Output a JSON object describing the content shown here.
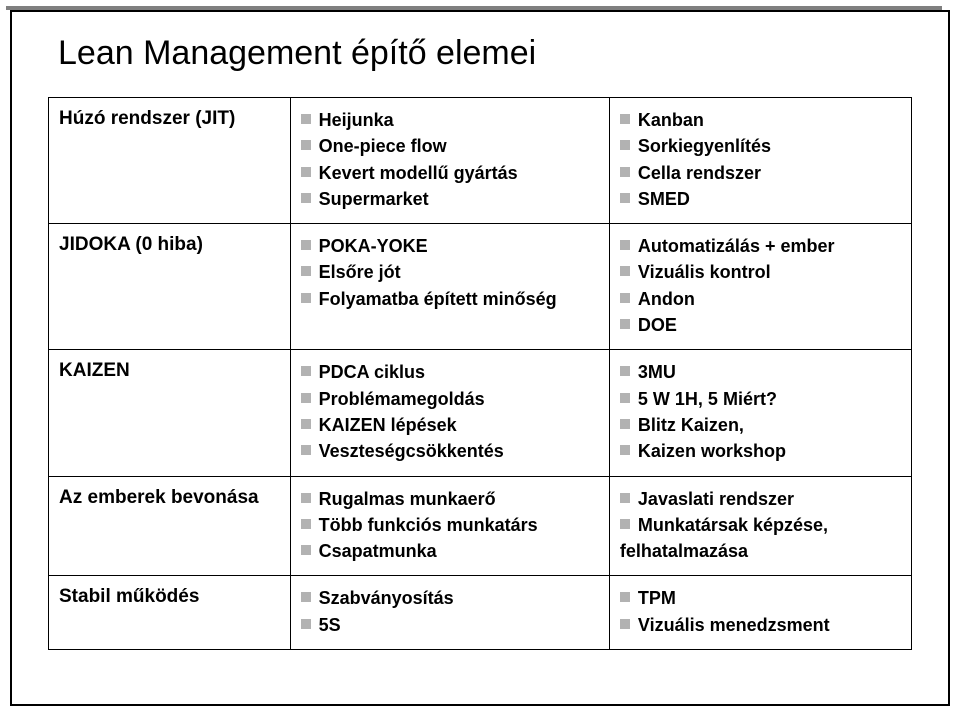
{
  "title": "Lean Management építő elemei",
  "rows": [
    {
      "label": "Húzó rendszer (JIT)",
      "col2": [
        "Heijunka",
        "One-piece flow",
        "Kevert modellű gyártás",
        "Supermarket"
      ],
      "col3": [
        "Kanban",
        "Sorkiegyenlítés",
        "Cella rendszer",
        "SMED"
      ]
    },
    {
      "label": "JIDOKA (0 hiba)",
      "col2": [
        "POKA-YOKE",
        "Elsőre jót",
        "Folyamatba épített minőség"
      ],
      "col3": [
        "Automatizálás + ember",
        "Vizuális kontrol",
        "Andon",
        "DOE"
      ]
    },
    {
      "label": "KAIZEN",
      "col2": [
        "PDCA ciklus",
        "Problémamegoldás",
        "KAIZEN lépések",
        "Veszteségcsökkentés"
      ],
      "col3": [
        "3MU",
        "5 W 1H, 5 Miért?",
        "Blitz Kaizen,",
        "Kaizen workshop"
      ]
    },
    {
      "label": "Az emberek bevonása",
      "col2": [
        "Rugalmas munkaerő",
        "Több funkciós munkatárs",
        "Csapatmunka"
      ],
      "col3": [
        "Javaslati rendszer",
        "Munkatársak képzése,"
      ],
      "col3_extra": "felhatalmazása"
    },
    {
      "label": "Stabil működés",
      "col2": [
        "Szabványosítás",
        "5S"
      ],
      "col3": [
        "TPM",
        "Vizuális menedzsment"
      ]
    }
  ],
  "style": {
    "bullet_color": "#b2b2b2",
    "border_color": "#000000",
    "background_color": "#ffffff",
    "title_fontsize": 34,
    "cell_fontsize": 18,
    "font_family": "Arial"
  }
}
